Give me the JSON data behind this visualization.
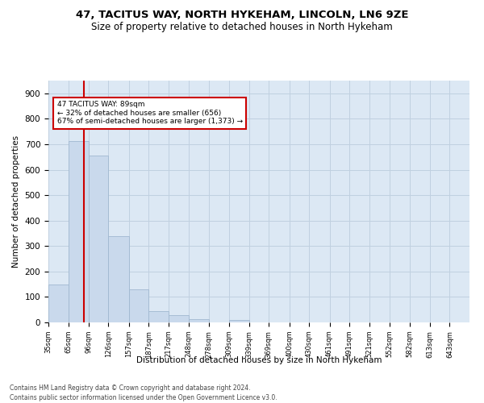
{
  "title1": "47, TACITUS WAY, NORTH HYKEHAM, LINCOLN, LN6 9ZE",
  "title2": "Size of property relative to detached houses in North Hykeham",
  "xlabel": "Distribution of detached houses by size in North Hykeham",
  "ylabel": "Number of detached properties",
  "footnote1": "Contains HM Land Registry data © Crown copyright and database right 2024.",
  "footnote2": "Contains public sector information licensed under the Open Government Licence v3.0.",
  "bar_labels": [
    "35sqm",
    "65sqm",
    "96sqm",
    "126sqm",
    "157sqm",
    "187sqm",
    "217sqm",
    "248sqm",
    "278sqm",
    "309sqm",
    "339sqm",
    "369sqm",
    "400sqm",
    "430sqm",
    "461sqm",
    "491sqm",
    "521sqm",
    "552sqm",
    "582sqm",
    "613sqm",
    "643sqm"
  ],
  "bar_values": [
    150,
    714,
    655,
    340,
    130,
    43,
    30,
    12,
    0,
    8,
    0,
    0,
    0,
    0,
    0,
    0,
    0,
    0,
    0,
    0,
    0
  ],
  "bar_color": "#c9d9ec",
  "bar_edge_color": "#a0b8d0",
  "grid_color": "#c0d0e0",
  "background_color": "#dce8f4",
  "vline_color": "#cc0000",
  "annotation_text": "47 TACITUS WAY: 89sqm\n← 32% of detached houses are smaller (656)\n67% of semi-detached houses are larger (1,373) →",
  "annotation_box_color": "#ffffff",
  "annotation_box_edge": "#cc0000",
  "ylim": [
    0,
    950
  ],
  "yticks": [
    0,
    100,
    200,
    300,
    400,
    500,
    600,
    700,
    800,
    900
  ],
  "title1_fontsize": 9.5,
  "title2_fontsize": 8.5,
  "property_sqm": 89,
  "bin_edges": [
    35,
    65,
    96,
    126,
    157,
    187,
    217,
    248,
    278,
    309,
    339,
    369,
    400,
    430,
    461,
    491,
    521,
    552,
    582,
    613,
    643
  ],
  "xlim_right": 673,
  "footnote_fontsize": 5.5
}
